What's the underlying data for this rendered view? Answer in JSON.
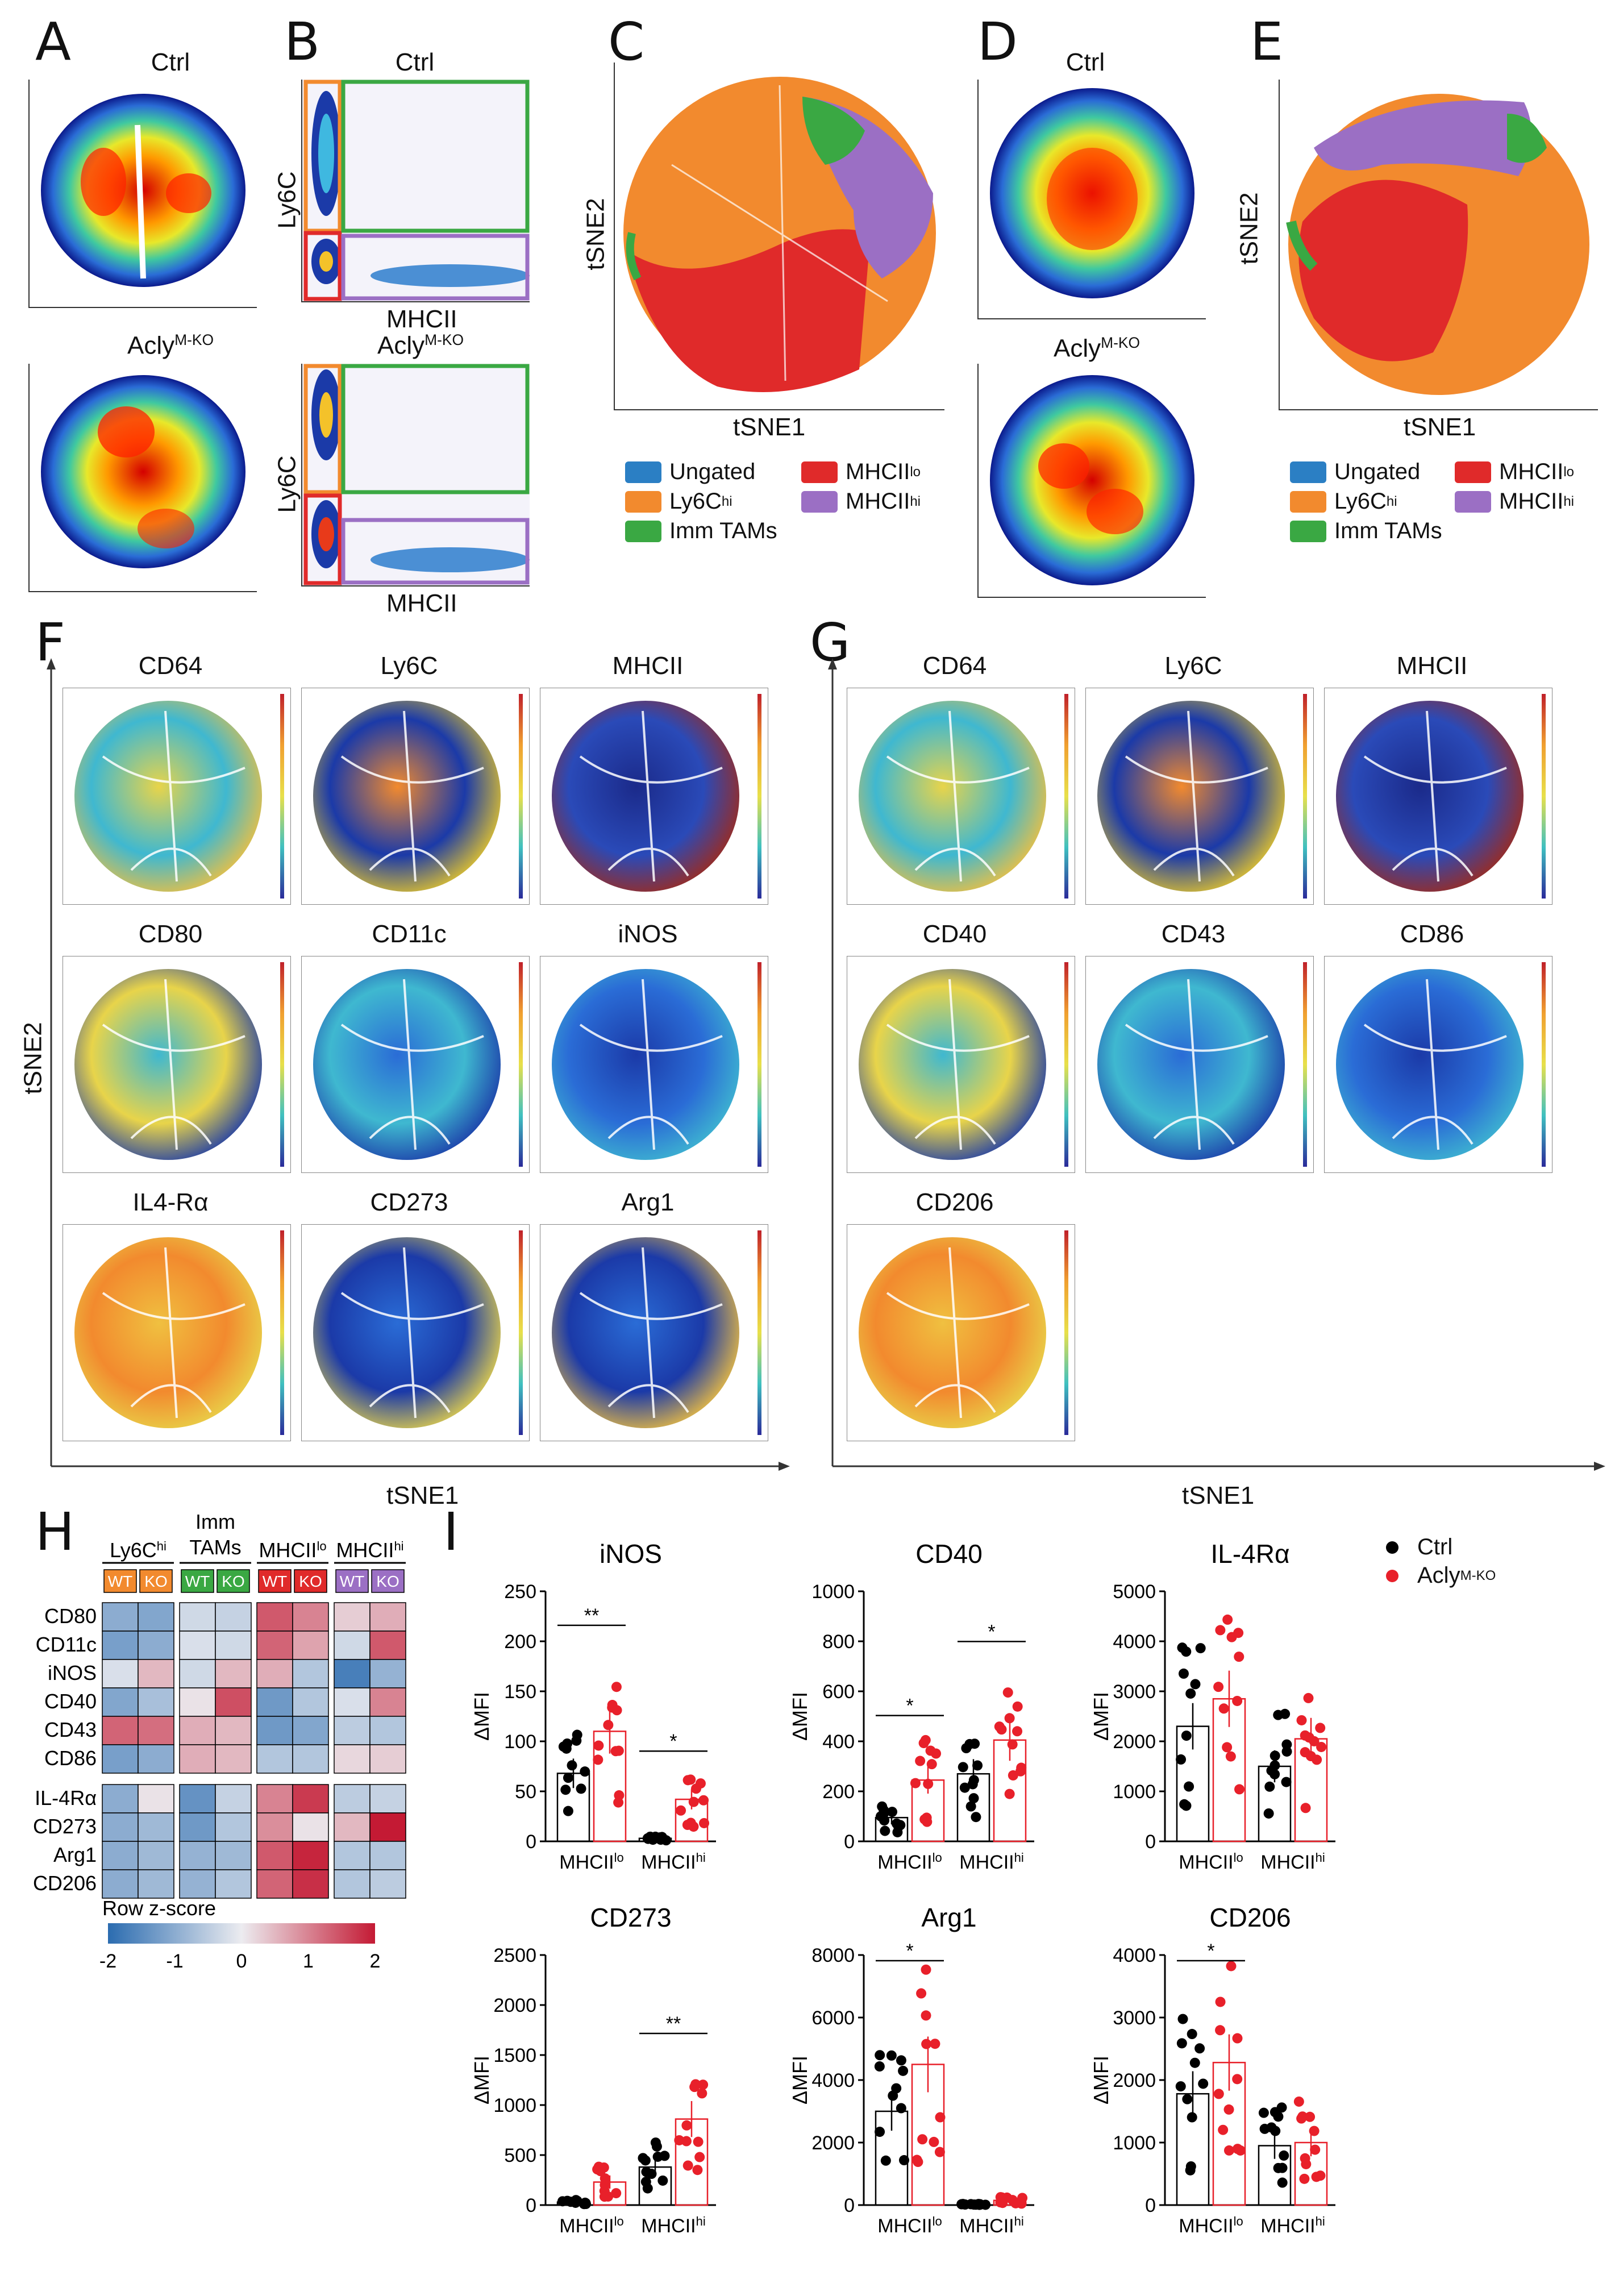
{
  "panels": {
    "A": {
      "letter": "A",
      "top_title": "Ctrl",
      "bottom_title": "Acly",
      "bottom_sup": "M-KO"
    },
    "B": {
      "letter": "B",
      "top_title": "Ctrl",
      "bottom_title": "Acly",
      "bottom_sup": "M-KO",
      "y_label": "Ly6C",
      "x_label": "MHCII"
    },
    "C": {
      "letter": "C",
      "x_label": "tSNE1",
      "y_label": "tSNE2"
    },
    "D": {
      "letter": "D",
      "top_title": "Ctrl",
      "bottom_title": "Acly",
      "bottom_sup": "M-KO"
    },
    "E": {
      "letter": "E",
      "x_label": "tSNE1",
      "y_label": "tSNE2"
    },
    "F": {
      "letter": "F",
      "x_label": "tSNE1",
      "y_label": "tSNE2",
      "markers": [
        "CD64",
        "Ly6C",
        "MHCII",
        "CD80",
        "CD11c",
        "iNOS",
        "IL4-Rα",
        "CD273",
        "Arg1"
      ]
    },
    "G": {
      "letter": "G",
      "x_label": "tSNE1",
      "markers": [
        "CD64",
        "Ly6C",
        "MHCII",
        "CD40",
        "CD43",
        "CD86",
        "CD206"
      ]
    },
    "H": {
      "letter": "H"
    },
    "I": {
      "letter": "I"
    }
  },
  "legend": {
    "ungated": "Ungated",
    "ly6c_base": "Ly6C",
    "ly6c_sup": "hi",
    "imm_tams": "Imm TAMs",
    "mhcii_lo_base": "MHCII",
    "mhcii_lo_sup": "lo",
    "mhcii_hi_base": "MHCII",
    "mhcii_hi_sup": "hi"
  },
  "colors": {
    "ungated": "#2b7fc4",
    "ly6chi": "#f28a2e",
    "imm": "#3aa843",
    "mhciilo": "#e02a2a",
    "mhciihi": "#9b6fc4",
    "ctrl": "#000000",
    "ko": "#e8202a"
  },
  "heatmap": {
    "groups": [
      {
        "base": "Ly6C",
        "sup": "hi",
        "color": "#f28a2e"
      },
      {
        "base": "Imm",
        "line2": "TAMs",
        "color": "#3aa843"
      },
      {
        "base": "MHCII",
        "sup": "lo",
        "color": "#e02a2a"
      },
      {
        "base": "MHCII",
        "sup": "hi",
        "color": "#9b6fc4"
      }
    ],
    "wt_label": "WT",
    "ko_label": "KO",
    "rows_a": [
      "CD80",
      "CD11c",
      "iNOS",
      "CD40",
      "CD43",
      "CD86"
    ],
    "rows_b": [
      "IL-4Rα",
      "CD273",
      "Arg1",
      "CD206"
    ],
    "values_a": [
      [
        -1.0,
        -1.1,
        -0.3,
        -0.4,
        1.4,
        1.0,
        0.3,
        0.6
      ],
      [
        -1.2,
        -1.0,
        -0.2,
        -0.3,
        1.3,
        0.7,
        -0.3,
        1.4
      ],
      [
        -0.2,
        0.5,
        -0.3,
        0.5,
        0.6,
        -0.6,
        -1.7,
        -0.9
      ],
      [
        -1.1,
        -0.7,
        0.1,
        1.5,
        -1.3,
        -0.6,
        -0.2,
        1.0
      ],
      [
        1.3,
        1.2,
        0.6,
        0.5,
        -1.3,
        -1.1,
        -0.5,
        -0.6
      ],
      [
        -1.2,
        -1.0,
        0.6,
        0.5,
        -0.6,
        -0.6,
        0.2,
        0.3
      ]
    ],
    "values_b": [
      [
        -1.0,
        0.1,
        -1.4,
        -0.4,
        1.0,
        1.7,
        -0.5,
        -0.4
      ],
      [
        -1.0,
        -0.8,
        -1.3,
        -0.6,
        0.9,
        0.1,
        0.5,
        2.0
      ],
      [
        -1.0,
        -0.8,
        -0.9,
        -0.8,
        1.4,
        1.9,
        -0.6,
        -0.6
      ],
      [
        -1.0,
        -0.8,
        -0.9,
        -0.6,
        1.3,
        1.8,
        -0.6,
        -0.5
      ]
    ],
    "scale_title": "Row z-score",
    "scale_ticks": [
      "-2",
      "-1",
      "0",
      "1",
      "2"
    ]
  },
  "scatter_legend": {
    "ctrl": "Ctrl",
    "ko_base": "Acly",
    "ko_sup": "M-KO"
  },
  "chart_data": [
    {
      "type": "bar",
      "title": "iNOS",
      "ylabel": "ΔMFI",
      "ylim": [
        0,
        250
      ],
      "yticks": [
        "0",
        "50",
        "100",
        "150",
        "200",
        "250"
      ],
      "categories": [
        {
          "base": "MHCII",
          "sup": "lo"
        },
        {
          "base": "MHCII",
          "sup": "hi"
        }
      ],
      "series": [
        {
          "name": "Ctrl",
          "values": [
            68,
            3
          ]
        },
        {
          "name": "Acly M-KO",
          "values": [
            110,
            42
          ]
        }
      ],
      "significance": [
        "**",
        "*"
      ]
    },
    {
      "type": "bar",
      "title": "CD40",
      "ylabel": "ΔMFI",
      "ylim": [
        0,
        1000
      ],
      "yticks": [
        "0",
        "200",
        "400",
        "600",
        "800",
        "1000"
      ],
      "categories": [
        {
          "base": "MHCII",
          "sup": "lo"
        },
        {
          "base": "MHCII",
          "sup": "hi"
        }
      ],
      "series": [
        {
          "name": "Ctrl",
          "values": [
            95,
            270
          ]
        },
        {
          "name": "Acly M-KO",
          "values": [
            245,
            405
          ]
        }
      ],
      "significance": [
        "*",
        "*"
      ]
    },
    {
      "type": "bar",
      "title": "IL-4Rα",
      "ylabel": "ΔMFI",
      "ylim": [
        0,
        5000
      ],
      "yticks": [
        "0",
        "1000",
        "2000",
        "3000",
        "4000",
        "5000"
      ],
      "categories": [
        {
          "base": "MHCII",
          "sup": "lo"
        },
        {
          "base": "MHCII",
          "sup": "hi"
        }
      ],
      "series": [
        {
          "name": "Ctrl",
          "values": [
            2300,
            1500
          ]
        },
        {
          "name": "Acly M-KO",
          "values": [
            2850,
            2050
          ]
        }
      ],
      "significance": [
        "",
        ""
      ]
    },
    {
      "type": "bar",
      "title": "CD273",
      "ylabel": "ΔMFI",
      "ylim": [
        0,
        2500
      ],
      "yticks": [
        "0",
        "500",
        "1000",
        "1500",
        "2000",
        "2500"
      ],
      "categories": [
        {
          "base": "MHCII",
          "sup": "lo"
        },
        {
          "base": "MHCII",
          "sup": "hi"
        }
      ],
      "series": [
        {
          "name": "Ctrl",
          "values": [
            30,
            380
          ]
        },
        {
          "name": "Acly M-KO",
          "values": [
            230,
            860
          ]
        }
      ],
      "significance": [
        "",
        "**"
      ]
    },
    {
      "type": "bar",
      "title": "Arg1",
      "ylabel": "ΔMFI",
      "ylim": [
        0,
        8000
      ],
      "yticks": [
        "0",
        "2000",
        "4000",
        "6000",
        "8000"
      ],
      "categories": [
        {
          "base": "MHCII",
          "sup": "lo"
        },
        {
          "base": "MHCII",
          "sup": "hi"
        }
      ],
      "series": [
        {
          "name": "Ctrl",
          "values": [
            3000,
            20
          ]
        },
        {
          "name": "Acly M-KO",
          "values": [
            4500,
            150
          ]
        }
      ],
      "significance": [
        "*",
        ""
      ]
    },
    {
      "type": "bar",
      "title": "CD206",
      "ylabel": "ΔMFI",
      "ylim": [
        0,
        4000
      ],
      "yticks": [
        "0",
        "1000",
        "2000",
        "3000",
        "4000"
      ],
      "categories": [
        {
          "base": "MHCII",
          "sup": "lo"
        },
        {
          "base": "MHCII",
          "sup": "hi"
        }
      ],
      "series": [
        {
          "name": "Ctrl",
          "values": [
            1780,
            950
          ]
        },
        {
          "name": "Acly M-KO",
          "values": [
            2280,
            1000
          ]
        }
      ],
      "significance": [
        "*",
        ""
      ]
    }
  ]
}
